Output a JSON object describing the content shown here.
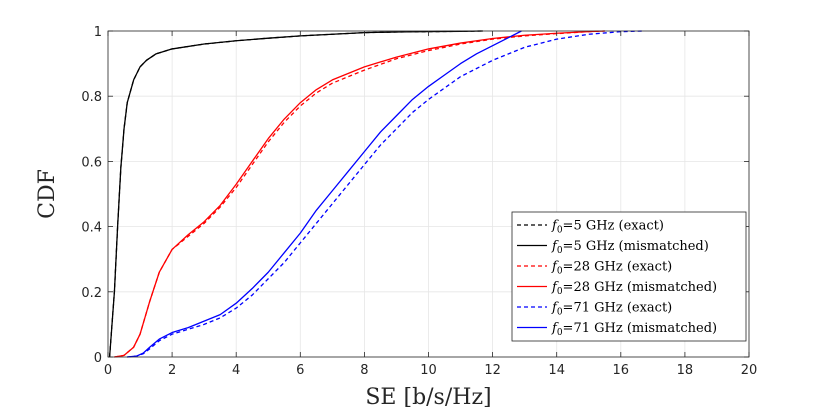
{
  "chart_data": {
    "type": "line",
    "title": "",
    "xlabel": "SE [b/s/Hz]",
    "ylabel": "CDF",
    "xlim": [
      0,
      20
    ],
    "ylim": [
      0,
      1
    ],
    "xticks": [
      0,
      2,
      4,
      6,
      8,
      10,
      12,
      14,
      16,
      18,
      20
    ],
    "yticks": [
      0,
      0.2,
      0.4,
      0.6,
      0.8,
      1
    ],
    "xtick_labels": [
      "0",
      "2",
      "4",
      "6",
      "8",
      "10",
      "12",
      "14",
      "16",
      "18",
      "20"
    ],
    "ytick_labels": [
      "0",
      "0.2",
      "0.4",
      "0.6",
      "0.8",
      "1"
    ],
    "grid": true,
    "legend_position": "bottom-right",
    "series": [
      {
        "name": "f0=5 GHz (exact)",
        "legend_prefix": "f",
        "legend_sub": "0",
        "legend_suffix": "=5 GHz (exact)",
        "color": "#000000",
        "dashed": true,
        "x": [
          0.05,
          0.2,
          0.3,
          0.4,
          0.5,
          0.6,
          0.8,
          1.0,
          1.2,
          1.5,
          2.0,
          3.0,
          4.0,
          5.0,
          6.0,
          7.0,
          8.0,
          9.0,
          10.0,
          11.0,
          11.7
        ],
        "y": [
          0,
          0.2,
          0.4,
          0.58,
          0.7,
          0.78,
          0.85,
          0.89,
          0.91,
          0.93,
          0.945,
          0.96,
          0.97,
          0.978,
          0.985,
          0.99,
          0.995,
          0.997,
          0.998,
          0.999,
          1.0
        ]
      },
      {
        "name": "f0=5 GHz (mismatched)",
        "legend_prefix": "f",
        "legend_sub": "0",
        "legend_suffix": "=5 GHz (mismatched)",
        "color": "#000000",
        "dashed": false,
        "x": [
          0.05,
          0.2,
          0.3,
          0.4,
          0.5,
          0.6,
          0.8,
          1.0,
          1.2,
          1.5,
          2.0,
          3.0,
          4.0,
          5.0,
          6.0,
          7.0,
          8.0,
          9.0,
          10.0,
          11.0,
          11.7
        ],
        "y": [
          0,
          0.2,
          0.4,
          0.58,
          0.7,
          0.78,
          0.85,
          0.89,
          0.91,
          0.93,
          0.945,
          0.96,
          0.97,
          0.978,
          0.985,
          0.99,
          0.995,
          0.997,
          0.998,
          0.999,
          1.0
        ]
      },
      {
        "name": "f0=28 GHz (exact)",
        "legend_prefix": "f",
        "legend_sub": "0",
        "legend_suffix": "=28 GHz (exact)",
        "color": "#ff0000",
        "dashed": true,
        "x": [
          0.2,
          0.5,
          0.8,
          1.0,
          1.3,
          1.6,
          2.0,
          2.5,
          3.0,
          3.5,
          4.0,
          4.5,
          5.0,
          5.5,
          6.0,
          6.5,
          7.0,
          8.0,
          9.0,
          10.0,
          11.0,
          12.0,
          13.0,
          14.0,
          15.0,
          15.5
        ],
        "y": [
          0,
          0.005,
          0.03,
          0.07,
          0.17,
          0.26,
          0.33,
          0.37,
          0.41,
          0.46,
          0.52,
          0.59,
          0.66,
          0.72,
          0.77,
          0.81,
          0.84,
          0.88,
          0.915,
          0.94,
          0.96,
          0.975,
          0.985,
          0.992,
          0.998,
          1.0
        ]
      },
      {
        "name": "f0=28 GHz (mismatched)",
        "legend_prefix": "f",
        "legend_sub": "0",
        "legend_suffix": "=28 GHz (mismatched)",
        "color": "#ff0000",
        "dashed": false,
        "x": [
          0.2,
          0.5,
          0.8,
          1.0,
          1.3,
          1.6,
          2.0,
          2.5,
          3.0,
          3.5,
          4.0,
          4.5,
          5.0,
          5.5,
          6.0,
          6.5,
          7.0,
          8.0,
          9.0,
          10.0,
          11.0,
          12.0,
          13.0,
          14.0,
          15.0,
          15.5
        ],
        "y": [
          0,
          0.005,
          0.03,
          0.07,
          0.17,
          0.26,
          0.33,
          0.375,
          0.415,
          0.465,
          0.53,
          0.6,
          0.67,
          0.73,
          0.78,
          0.82,
          0.85,
          0.89,
          0.92,
          0.945,
          0.963,
          0.977,
          0.987,
          0.993,
          0.998,
          1.0
        ]
      },
      {
        "name": "f0=71 GHz (exact)",
        "legend_prefix": "f",
        "legend_sub": "0",
        "legend_suffix": "=71 GHz (exact)",
        "color": "#0000ff",
        "dashed": true,
        "x": [
          0.6,
          0.9,
          1.1,
          1.3,
          1.6,
          2.0,
          2.5,
          3.0,
          3.5,
          4.0,
          4.5,
          5.0,
          5.5,
          6.0,
          6.5,
          7.0,
          7.5,
          8.0,
          8.5,
          9.0,
          9.5,
          10.0,
          10.5,
          11.0,
          11.5,
          12.0,
          13.0,
          14.0,
          15.0,
          16.0,
          16.7
        ],
        "y": [
          0,
          0.003,
          0.01,
          0.025,
          0.05,
          0.07,
          0.085,
          0.1,
          0.12,
          0.15,
          0.19,
          0.24,
          0.29,
          0.35,
          0.41,
          0.47,
          0.53,
          0.59,
          0.65,
          0.7,
          0.75,
          0.79,
          0.825,
          0.86,
          0.885,
          0.91,
          0.95,
          0.975,
          0.99,
          0.998,
          1.0
        ]
      },
      {
        "name": "f0=71 GHz (mismatched)",
        "legend_prefix": "f",
        "legend_sub": "0",
        "legend_suffix": "=71 GHz (mismatched)",
        "color": "#0000ff",
        "dashed": false,
        "x": [
          0.6,
          0.9,
          1.1,
          1.3,
          1.6,
          2.0,
          2.5,
          3.0,
          3.5,
          4.0,
          4.5,
          5.0,
          5.5,
          6.0,
          6.5,
          7.0,
          7.5,
          8.0,
          8.5,
          9.0,
          9.5,
          10.0,
          10.5,
          11.0,
          11.5,
          12.0,
          12.5,
          12.9
        ],
        "y": [
          0,
          0.003,
          0.012,
          0.03,
          0.055,
          0.075,
          0.09,
          0.11,
          0.13,
          0.165,
          0.21,
          0.26,
          0.32,
          0.38,
          0.45,
          0.51,
          0.57,
          0.63,
          0.69,
          0.74,
          0.79,
          0.83,
          0.865,
          0.9,
          0.93,
          0.955,
          0.98,
          1.0
        ]
      }
    ]
  }
}
